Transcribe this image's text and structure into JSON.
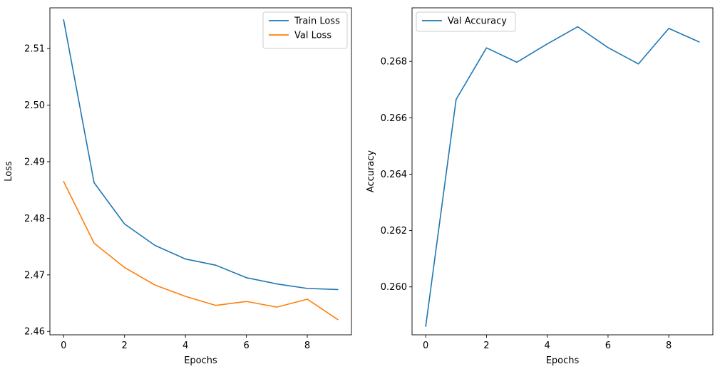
{
  "chart_data": [
    {
      "type": "line",
      "title": "",
      "xlabel": "Epochs",
      "ylabel": "Loss",
      "xlim": [
        -0.45,
        9.45
      ],
      "ylim": [
        2.4594,
        2.5172
      ],
      "xticks": [
        0,
        2,
        4,
        6,
        8
      ],
      "yticks": [
        2.46,
        2.47,
        2.48,
        2.49,
        2.5,
        2.51
      ],
      "ytick_labels": [
        "2.46",
        "2.47",
        "2.48",
        "2.49",
        "2.50",
        "2.51"
      ],
      "x": [
        0,
        1,
        2,
        3,
        4,
        5,
        6,
        7,
        8,
        9
      ],
      "series": [
        {
          "name": "Train Loss",
          "color": "#1f77b4",
          "values": [
            2.5151,
            2.4863,
            2.479,
            2.4752,
            2.4728,
            2.4717,
            2.4695,
            2.4684,
            2.4676,
            2.4674
          ]
        },
        {
          "name": "Val Loss",
          "color": "#ff7f0e",
          "values": [
            2.4865,
            2.4756,
            2.4713,
            2.4682,
            2.4662,
            2.4646,
            2.4653,
            2.4643,
            2.4657,
            2.4621
          ]
        }
      ],
      "legend": "top-right",
      "grid": false
    },
    {
      "type": "line",
      "title": "",
      "xlabel": "Epochs",
      "ylabel": "Accuracy",
      "xlim": [
        -0.45,
        9.45
      ],
      "ylim": [
        0.2583,
        0.2699
      ],
      "xticks": [
        0,
        2,
        4,
        6,
        8
      ],
      "yticks": [
        0.26,
        0.262,
        0.264,
        0.266,
        0.268
      ],
      "ytick_labels": [
        "0.260",
        "0.262",
        "0.264",
        "0.266",
        "0.268"
      ],
      "x": [
        0,
        1,
        2,
        3,
        4,
        5,
        6,
        7,
        8,
        9
      ],
      "series": [
        {
          "name": "Val Accuracy",
          "color": "#1f77b4",
          "values": [
            0.2586,
            0.26665,
            0.26848,
            0.26797,
            0.26862,
            0.26923,
            0.26849,
            0.26791,
            0.26917,
            0.26869
          ]
        }
      ],
      "legend": "top-left",
      "grid": false
    }
  ]
}
